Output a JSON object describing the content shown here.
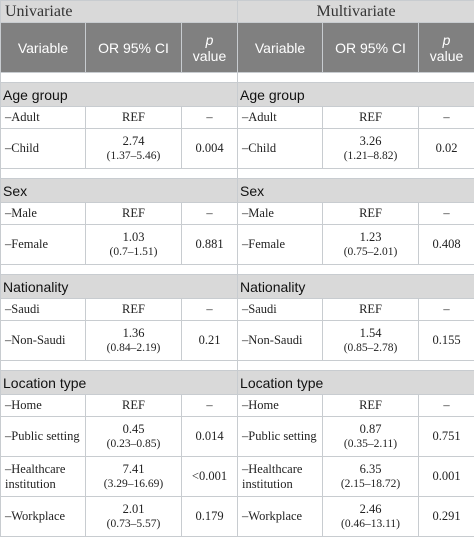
{
  "groups": {
    "univariate": "Univariate",
    "multivariate": "Multivariate"
  },
  "columns": {
    "variable": "Variable",
    "or": "OR 95% CI",
    "p_italic": "p",
    "p_rest": "value"
  },
  "sections": [
    {
      "title": "Age group",
      "rows": [
        {
          "var": "–Adult",
          "uni": {
            "or": "REF",
            "ci": "",
            "p": "–"
          },
          "multi": {
            "or": "REF",
            "ci": "",
            "p": "–"
          }
        },
        {
          "var": "–Child",
          "uni": {
            "or": "2.74",
            "ci": "(1.37–5.46)",
            "p": "0.004"
          },
          "multi": {
            "or": "3.26",
            "ci": "(1.21–8.82)",
            "p": "0.02"
          }
        }
      ]
    },
    {
      "title": "Sex",
      "rows": [
        {
          "var": "–Male",
          "uni": {
            "or": "REF",
            "ci": "",
            "p": "–"
          },
          "multi": {
            "or": "REF",
            "ci": "",
            "p": "–"
          }
        },
        {
          "var": "–Female",
          "uni": {
            "or": "1.03",
            "ci": "(0.7–1.51)",
            "p": "0.881"
          },
          "multi": {
            "or": "1.23",
            "ci": "(0.75–2.01)",
            "p": "0.408"
          }
        }
      ]
    },
    {
      "title": "Nationality",
      "rows": [
        {
          "var": "–Saudi",
          "uni": {
            "or": "REF",
            "ci": "",
            "p": "–"
          },
          "multi": {
            "or": "REF",
            "ci": "",
            "p": "–"
          }
        },
        {
          "var": "–Non-Saudi",
          "uni": {
            "or": "1.36",
            "ci": "(0.84–2.19)",
            "p": "0.21"
          },
          "multi": {
            "or": "1.54",
            "ci": "(0.85–2.78)",
            "p": "0.155"
          }
        }
      ]
    },
    {
      "title": "Location type",
      "rows": [
        {
          "var": "–Home",
          "uni": {
            "or": "REF",
            "ci": "",
            "p": "–"
          },
          "multi": {
            "or": "REF",
            "ci": "",
            "p": "–"
          }
        },
        {
          "var": "–Public setting",
          "uni": {
            "or": "0.45",
            "ci": "(0.23–0.85)",
            "p": "0.014"
          },
          "multi": {
            "or": "0.87",
            "ci": "(0.35–2.11)",
            "p": "0.751"
          }
        },
        {
          "var": "–Healthcare institution",
          "uni": {
            "or": "7.41",
            "ci": "(3.29–16.69)",
            "p": "<0.001"
          },
          "multi": {
            "or": "6.35",
            "ci": "(2.15–18.72)",
            "p": "0.001"
          }
        },
        {
          "var": "–Workplace",
          "uni": {
            "or": "2.01",
            "ci": "(0.73–5.57)",
            "p": "0.179"
          },
          "multi": {
            "or": "2.46",
            "ci": "(0.46–13.11)",
            "p": "0.291"
          }
        }
      ]
    }
  ]
}
